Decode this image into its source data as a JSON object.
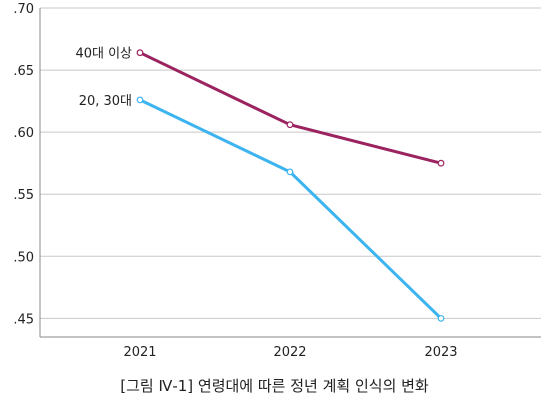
{
  "chart_data": {
    "type": "line",
    "x": [
      "2021",
      "2022",
      "2023"
    ],
    "series": [
      {
        "name": "40대 이상",
        "values": [
          0.664,
          0.606,
          0.575
        ],
        "color": "#9b2360"
      },
      {
        "name": "20, 30대",
        "values": [
          0.626,
          0.568,
          0.45
        ],
        "color": "#3cb4f0"
      }
    ],
    "ylim": [
      0.435,
      0.7
    ],
    "yticks": [
      0.45,
      0.5,
      0.55,
      0.6,
      0.65,
      0.7
    ],
    "ytick_labels": [
      ".45",
      ".50",
      ".55",
      ".60",
      ".65",
      ".70"
    ],
    "grid": true,
    "axis_color": "#888888",
    "grid_color": "#c8c8c8"
  },
  "caption": "[그림 Ⅳ-1] 연령대에 따른 정년 계획 인식의 변화"
}
